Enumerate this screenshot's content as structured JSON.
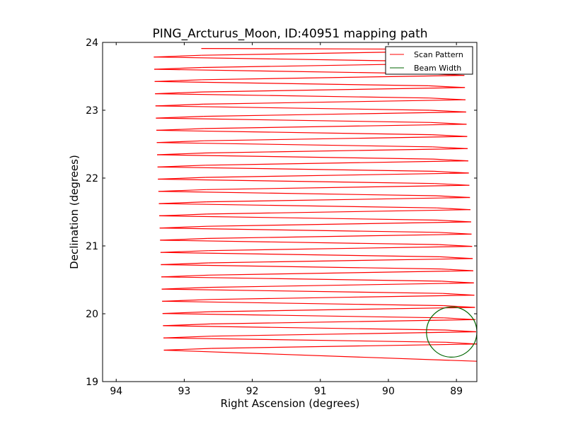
{
  "chart_data": {
    "type": "line",
    "title": "PING_Arcturus_Moon, ID:40951 mapping path",
    "xlabel": "Right Ascension (degrees)",
    "ylabel": "Declination (degrees)",
    "xlim": [
      94.2,
      88.7
    ],
    "ylim": [
      19,
      24
    ],
    "x_ticks": [
      "94",
      "93",
      "92",
      "91",
      "90",
      "89"
    ],
    "x_tick_values": [
      94,
      93,
      92,
      91,
      90,
      89
    ],
    "y_ticks": [
      "19",
      "20",
      "21",
      "22",
      "23",
      "24"
    ],
    "y_tick_values": [
      19,
      20,
      21,
      22,
      23,
      24
    ],
    "grid": false,
    "legend_position": "top-right",
    "series": [
      {
        "name": "Scan Pattern",
        "color": "#ff0000",
        "scan_start": {
          "ra": 92.75,
          "dec": 23.91
        },
        "scan_end": {
          "ra": 88.7,
          "dec": 19.3
        },
        "rows": 50,
        "ra_left": [
          93.45,
          93.3
        ],
        "ra_left_inner": [
          92.75,
          92.6
        ],
        "ra_right": [
          88.9,
          88.7
        ],
        "ra_right_inner": [
          89.45,
          89.15
        ],
        "dec_row_step": 0.09
      },
      {
        "name": "Beam Width",
        "color": "#006600",
        "shape": "circle",
        "center": {
          "ra": 89.07,
          "dec": 19.73
        },
        "radius_deg": 0.37
      }
    ]
  }
}
